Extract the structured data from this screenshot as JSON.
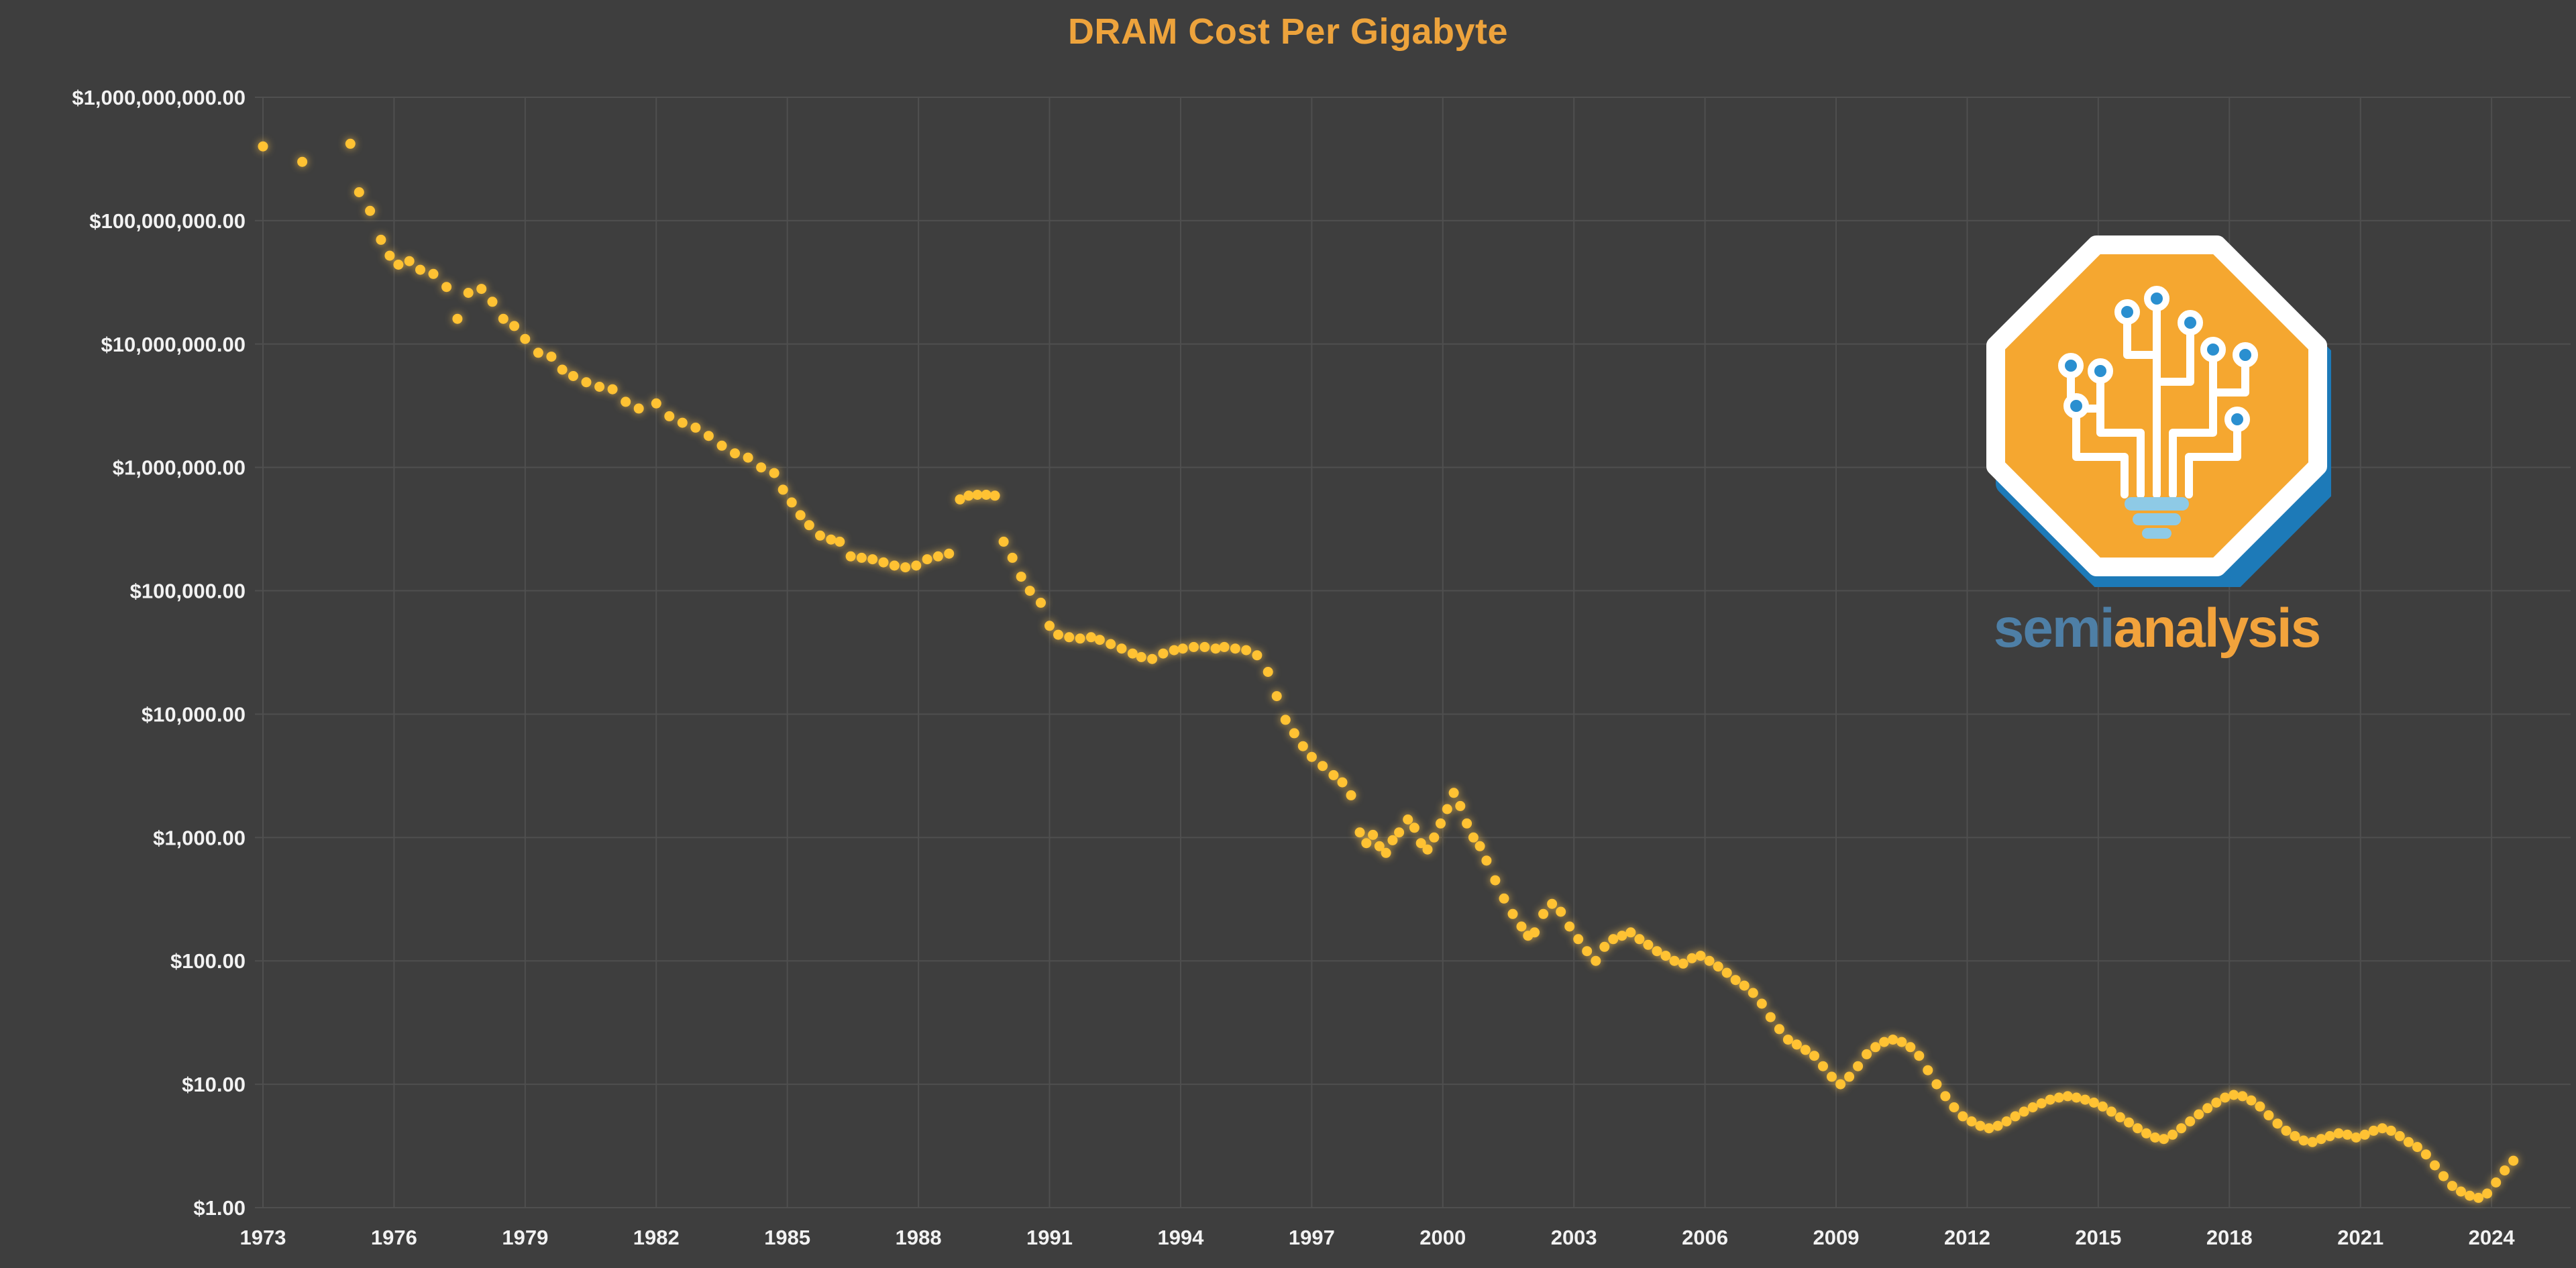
{
  "page": {
    "background_color": "#3e3e3e"
  },
  "chart_data": {
    "type": "scatter",
    "title": "DRAM Cost Per Gigabyte",
    "title_color": "#eda33c",
    "point_color": "#ffc233",
    "grid_color": "#4f4f4f",
    "label_color": "#f2f2f2",
    "background_color": "#3e3e3e",
    "xlabel": "",
    "ylabel": "",
    "y_axis": {
      "scale": "log",
      "ticks": [
        {
          "label": "$1,000,000,000.00",
          "value": 1000000000.0
        },
        {
          "label": "$100,000,000.00",
          "value": 100000000.0
        },
        {
          "label": "$10,000,000.00",
          "value": 10000000.0
        },
        {
          "label": "$1,000,000.00",
          "value": 1000000.0
        },
        {
          "label": "$100,000.00",
          "value": 100000.0
        },
        {
          "label": "$10,000.00",
          "value": 10000.0
        },
        {
          "label": "$1,000.00",
          "value": 1000.0
        },
        {
          "label": "$100.00",
          "value": 100.0
        },
        {
          "label": "$10.00",
          "value": 10.0
        },
        {
          "label": "$1.00",
          "value": 1
        }
      ]
    },
    "x_axis": {
      "ticks": [
        1973,
        1976,
        1979,
        1982,
        1985,
        1988,
        1991,
        1994,
        1997,
        2000,
        2003,
        2006,
        2009,
        2012,
        2015,
        2018,
        2021,
        2024
      ],
      "range": [
        1972.8,
        2025.7
      ]
    },
    "series": [
      {
        "name": "DRAM cost per gigabyte (USD)",
        "points": [
          [
            1973.0,
            400000000.0
          ],
          [
            1973.9,
            300000000.0
          ],
          [
            1975.0,
            420000000.0
          ],
          [
            1975.2,
            170000000.0
          ],
          [
            1975.45,
            120000000.0
          ],
          [
            1975.7,
            70000000.0
          ],
          [
            1975.9,
            52000000.0
          ],
          [
            1976.1,
            44000000.0
          ],
          [
            1976.35,
            47000000.0
          ],
          [
            1976.6,
            40000000.0
          ],
          [
            1976.9,
            37000000.0
          ],
          [
            1977.2,
            29000000.0
          ],
          [
            1977.45,
            16000000.0
          ],
          [
            1977.7,
            26000000.0
          ],
          [
            1978.0,
            28000000.0
          ],
          [
            1978.25,
            22000000.0
          ],
          [
            1978.5,
            16000000.0
          ],
          [
            1978.75,
            14000000.0
          ],
          [
            1979.0,
            11000000.0
          ],
          [
            1979.3,
            8500000.0
          ],
          [
            1979.6,
            7900000.0
          ],
          [
            1979.85,
            6200000.0
          ],
          [
            1980.1,
            5500000.0
          ],
          [
            1980.4,
            4900000.0
          ],
          [
            1980.7,
            4500000.0
          ],
          [
            1981.0,
            4300000.0
          ],
          [
            1981.3,
            3400000.0
          ],
          [
            1981.6,
            3000000.0
          ],
          [
            1982.0,
            3300000.0
          ],
          [
            1982.3,
            2600000.0
          ],
          [
            1982.6,
            2300000.0
          ],
          [
            1982.9,
            2100000.0
          ],
          [
            1983.2,
            1800000.0
          ],
          [
            1983.5,
            1500000.0
          ],
          [
            1983.8,
            1300000.0
          ],
          [
            1984.1,
            1200000.0
          ],
          [
            1984.4,
            1000000.0
          ],
          [
            1984.7,
            900000.0
          ],
          [
            1984.9,
            660000.0
          ],
          [
            1985.1,
            520000.0
          ],
          [
            1985.3,
            410000.0
          ],
          [
            1985.5,
            340000.0
          ],
          [
            1985.75,
            280000.0
          ],
          [
            1986.0,
            260000.0
          ],
          [
            1986.2,
            250000.0
          ],
          [
            1986.45,
            190000.0
          ],
          [
            1986.7,
            185000.0
          ],
          [
            1986.95,
            180000.0
          ],
          [
            1987.2,
            170000.0
          ],
          [
            1987.45,
            160000.0
          ],
          [
            1987.7,
            155000.0
          ],
          [
            1987.95,
            160000.0
          ],
          [
            1988.2,
            180000.0
          ],
          [
            1988.45,
            190000.0
          ],
          [
            1988.7,
            200000.0
          ],
          [
            1988.95,
            550000.0
          ],
          [
            1989.15,
            590000.0
          ],
          [
            1989.35,
            600000.0
          ],
          [
            1989.55,
            600000.0
          ],
          [
            1989.75,
            590000.0
          ],
          [
            1989.95,
            250000.0
          ],
          [
            1990.15,
            185000.0
          ],
          [
            1990.35,
            130000.0
          ],
          [
            1990.55,
            100000.0
          ],
          [
            1990.8,
            80000.0
          ],
          [
            1991.0,
            52000.0
          ],
          [
            1991.2,
            44000.0
          ],
          [
            1991.45,
            42000.0
          ],
          [
            1991.7,
            41000.0
          ],
          [
            1991.95,
            42000.0
          ],
          [
            1992.15,
            40000.0
          ],
          [
            1992.4,
            37000.0
          ],
          [
            1992.65,
            34000.0
          ],
          [
            1992.9,
            31000.0
          ],
          [
            1993.1,
            29000.0
          ],
          [
            1993.35,
            28000.0
          ],
          [
            1993.6,
            31000.0
          ],
          [
            1993.85,
            33000.0
          ],
          [
            1994.05,
            34000.0
          ],
          [
            1994.3,
            35000.0
          ],
          [
            1994.55,
            35000.0
          ],
          [
            1994.8,
            34000.0
          ],
          [
            1995.0,
            35000.0
          ],
          [
            1995.25,
            34000.0
          ],
          [
            1995.5,
            33000.0
          ],
          [
            1995.75,
            30000.0
          ],
          [
            1996.0,
            22000.0
          ],
          [
            1996.2,
            14000.0
          ],
          [
            1996.4,
            9000.0
          ],
          [
            1996.6,
            7000.0
          ],
          [
            1996.8,
            5500.0
          ],
          [
            1997.0,
            4500.0
          ],
          [
            1997.25,
            3800.0
          ],
          [
            1997.5,
            3200.0
          ],
          [
            1997.7,
            2800.0
          ],
          [
            1997.9,
            2200.0
          ],
          [
            1998.1,
            1100.0
          ],
          [
            1998.25,
            900.0
          ],
          [
            1998.4,
            1050.0
          ],
          [
            1998.55,
            850.0
          ],
          [
            1998.7,
            750.0
          ],
          [
            1998.85,
            950.0
          ],
          [
            1999.0,
            1100.0
          ],
          [
            1999.2,
            1400.0
          ],
          [
            1999.35,
            1200.0
          ],
          [
            1999.5,
            900.0
          ],
          [
            1999.65,
            800.0
          ],
          [
            1999.8,
            1000.0
          ],
          [
            1999.95,
            1300.0
          ],
          [
            2000.1,
            1700.0
          ],
          [
            2000.25,
            2300.0
          ],
          [
            2000.4,
            1800.0
          ],
          [
            2000.55,
            1300.0
          ],
          [
            2000.7,
            1000.0
          ],
          [
            2000.85,
            850.0
          ],
          [
            2001.0,
            650.0
          ],
          [
            2001.2,
            450.0
          ],
          [
            2001.4,
            320.0
          ],
          [
            2001.6,
            240.0
          ],
          [
            2001.8,
            190.0
          ],
          [
            2001.95,
            160.0
          ],
          [
            2002.1,
            170.0
          ],
          [
            2002.3,
            240.0
          ],
          [
            2002.5,
            290.0
          ],
          [
            2002.7,
            250.0
          ],
          [
            2002.9,
            190.0
          ],
          [
            2003.1,
            150.0
          ],
          [
            2003.3,
            120.0
          ],
          [
            2003.5,
            100.0
          ],
          [
            2003.7,
            130.0
          ],
          [
            2003.9,
            150.0
          ],
          [
            2004.1,
            160.0
          ],
          [
            2004.3,
            170.0
          ],
          [
            2004.5,
            150.0
          ],
          [
            2004.7,
            135.0
          ],
          [
            2004.9,
            120.0
          ],
          [
            2005.1,
            110.0
          ],
          [
            2005.3,
            100.0
          ],
          [
            2005.5,
            95.0
          ],
          [
            2005.7,
            105.0
          ],
          [
            2005.9,
            110.0
          ],
          [
            2006.1,
            100.0
          ],
          [
            2006.3,
            90.0
          ],
          [
            2006.5,
            80.0
          ],
          [
            2006.7,
            70.0
          ],
          [
            2006.9,
            63.0
          ],
          [
            2007.1,
            55.0
          ],
          [
            2007.3,
            45.0
          ],
          [
            2007.5,
            35.0
          ],
          [
            2007.7,
            28.0
          ],
          [
            2007.9,
            23.0
          ],
          [
            2008.1,
            21.0
          ],
          [
            2008.3,
            19.0
          ],
          [
            2008.5,
            17.0
          ],
          [
            2008.7,
            14.0
          ],
          [
            2008.9,
            11.5
          ],
          [
            2009.1,
            10.0
          ],
          [
            2009.3,
            11.5
          ],
          [
            2009.5,
            14.0
          ],
          [
            2009.7,
            17.5
          ],
          [
            2009.9,
            20.0
          ],
          [
            2010.1,
            22.0
          ],
          [
            2010.3,
            23.0
          ],
          [
            2010.5,
            22.0
          ],
          [
            2010.7,
            20.0
          ],
          [
            2010.9,
            17.0
          ],
          [
            2011.1,
            13.0
          ],
          [
            2011.3,
            10.0
          ],
          [
            2011.5,
            8.0
          ],
          [
            2011.7,
            6.5
          ],
          [
            2011.9,
            5.5
          ],
          [
            2012.1,
            5.0
          ],
          [
            2012.3,
            4.6
          ],
          [
            2012.5,
            4.4
          ],
          [
            2012.7,
            4.6
          ],
          [
            2012.9,
            5.0
          ],
          [
            2013.1,
            5.5
          ],
          [
            2013.3,
            6.0
          ],
          [
            2013.5,
            6.5
          ],
          [
            2013.7,
            7.0
          ],
          [
            2013.9,
            7.5
          ],
          [
            2014.1,
            7.8
          ],
          [
            2014.3,
            8.0
          ],
          [
            2014.5,
            7.8
          ],
          [
            2014.7,
            7.5
          ],
          [
            2014.9,
            7.1
          ],
          [
            2015.1,
            6.6
          ],
          [
            2015.3,
            6.0
          ],
          [
            2015.5,
            5.4
          ],
          [
            2015.7,
            4.9
          ],
          [
            2015.9,
            4.4
          ],
          [
            2016.1,
            4.0
          ],
          [
            2016.3,
            3.7
          ],
          [
            2016.5,
            3.6
          ],
          [
            2016.7,
            3.9
          ],
          [
            2016.9,
            4.4
          ],
          [
            2017.1,
            5.0
          ],
          [
            2017.3,
            5.7
          ],
          [
            2017.5,
            6.4
          ],
          [
            2017.7,
            7.1
          ],
          [
            2017.9,
            7.8
          ],
          [
            2018.1,
            8.2
          ],
          [
            2018.3,
            8.0
          ],
          [
            2018.5,
            7.4
          ],
          [
            2018.7,
            6.6
          ],
          [
            2018.9,
            5.6
          ],
          [
            2019.1,
            4.8
          ],
          [
            2019.3,
            4.2
          ],
          [
            2019.5,
            3.8
          ],
          [
            2019.7,
            3.5
          ],
          [
            2019.9,
            3.4
          ],
          [
            2020.1,
            3.6
          ],
          [
            2020.3,
            3.8
          ],
          [
            2020.5,
            4.0
          ],
          [
            2020.7,
            3.9
          ],
          [
            2020.9,
            3.7
          ],
          [
            2021.1,
            3.9
          ],
          [
            2021.3,
            4.2
          ],
          [
            2021.5,
            4.4
          ],
          [
            2021.7,
            4.2
          ],
          [
            2021.9,
            3.8
          ],
          [
            2022.1,
            3.4
          ],
          [
            2022.3,
            3.1
          ],
          [
            2022.5,
            2.7
          ],
          [
            2022.7,
            2.2
          ],
          [
            2022.9,
            1.8
          ],
          [
            2023.1,
            1.5
          ],
          [
            2023.3,
            1.35
          ],
          [
            2023.5,
            1.25
          ],
          [
            2023.7,
            1.2
          ],
          [
            2023.9,
            1.3
          ],
          [
            2024.1,
            1.6
          ],
          [
            2024.3,
            2.0
          ],
          [
            2024.5,
            2.4
          ]
        ]
      }
    ]
  },
  "logo": {
    "brand_first": "semi",
    "brand_second": "analysis",
    "octagon_color": "#f5a730",
    "shadow_color": "#1d7ab8",
    "accent_blue": "#2a8fd0",
    "base_blue": "#8ecae6",
    "text_blue": "#4e7fa6",
    "text_orange": "#f2a33c"
  }
}
